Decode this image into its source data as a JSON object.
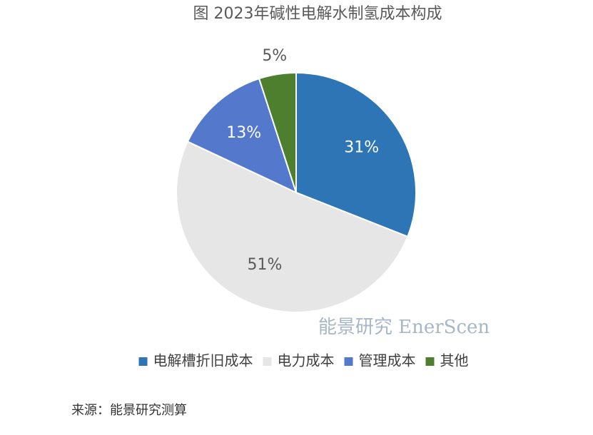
{
  "chart_data": {
    "type": "pie",
    "title": "图  2023年碱性电解水制氢成本构成",
    "categories": [
      "电解槽折旧成本",
      "电力成本",
      "管理成本",
      "其他"
    ],
    "values": [
      31,
      51,
      13,
      5
    ],
    "value_labels": [
      "31%",
      "51%",
      "13%",
      "5%"
    ],
    "colors": [
      "#2e75b6",
      "#e6e6e6",
      "#5479cc",
      "#4e7f2f"
    ],
    "legend": "bottom",
    "watermark": "能景研究 EnerScen",
    "source": "来源：能景研究测算"
  }
}
